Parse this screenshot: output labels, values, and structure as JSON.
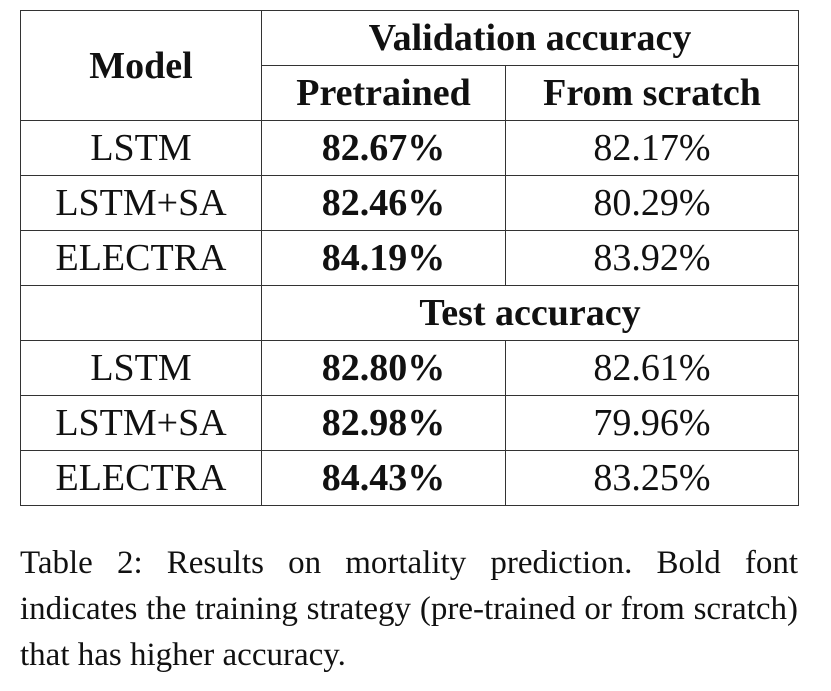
{
  "table": {
    "header": {
      "model": "Model",
      "columns": [
        "Pretrained",
        "From scratch"
      ]
    },
    "sections": [
      {
        "title": "Validation accuracy",
        "rows": [
          [
            "LSTM",
            "82.67%",
            "82.17%"
          ],
          [
            "LSTM+SA",
            "82.46%",
            "80.29%"
          ],
          [
            "ELECTRA",
            "84.19%",
            "83.92%"
          ]
        ]
      },
      {
        "title": "Test accuracy",
        "rows": [
          [
            "LSTM",
            "82.80%",
            "82.61%"
          ],
          [
            "LSTM+SA",
            "82.98%",
            "79.96%"
          ],
          [
            "ELECTRA",
            "84.43%",
            "83.25%"
          ]
        ]
      }
    ],
    "caption": "Table 2: Results on mortality prediction. Bold font indicates the training strategy (pre-trained or from scratch) that has higher accuracy."
  }
}
